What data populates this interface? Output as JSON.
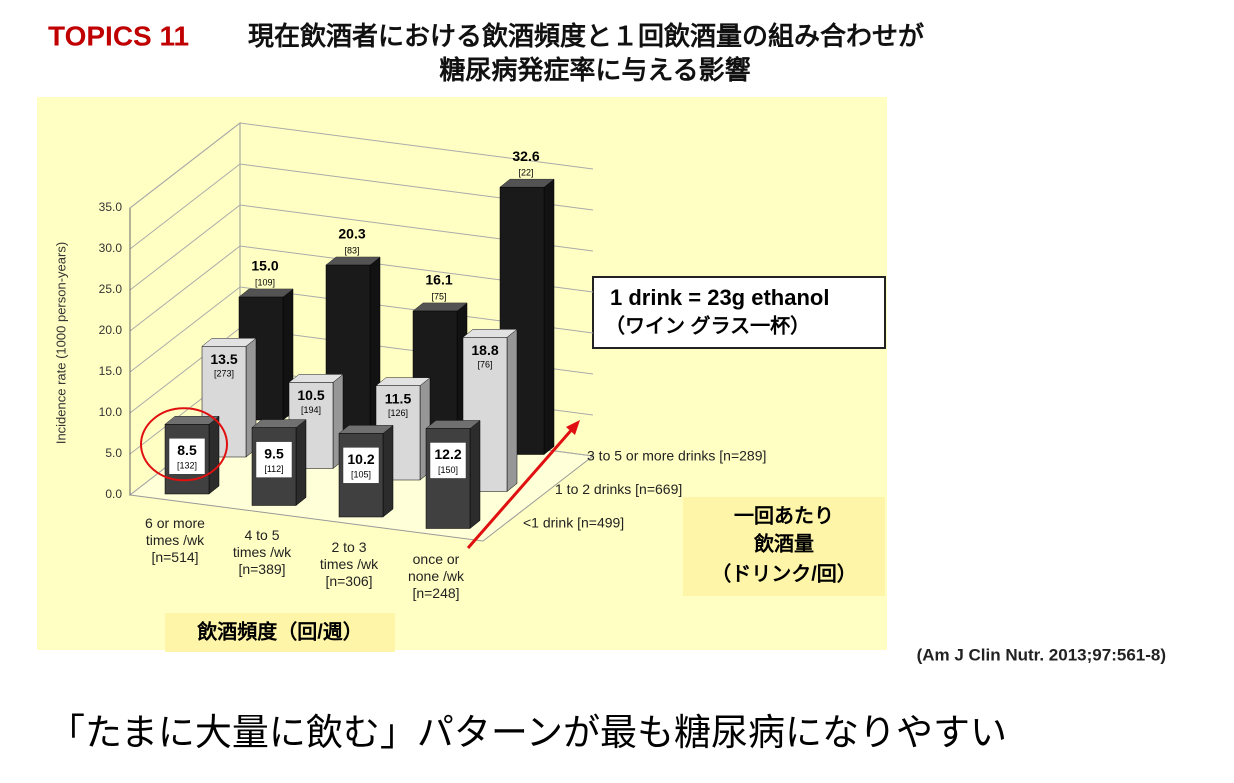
{
  "chart_data": {
    "type": "bar3d",
    "label": "TOPICS 11",
    "title": [
      "現在飲酒者における飲酒頻度と１回飲酒量の組み合わせが",
      "糖尿病発症率に与える影響"
    ],
    "y_label": "Incidence rate (1000 person-years)",
    "categories": [
      "6 or more\ntimes /wk\n[n=514]",
      "4 to 5\ntimes /wk\n[n=389]",
      "2 to 3\ntimes /wk\n[n=306]",
      "once or\nnone /wk\n[n=248]"
    ],
    "series": [
      {
        "name": "<1 drink  [n=499]",
        "color": "#404040",
        "values": [
          8.5,
          9.5,
          10.2,
          12.2
        ],
        "value_labels": [
          "8.5",
          "9.5",
          "10.2",
          "12.2"
        ],
        "count_labels": [
          "[132]",
          "[112]",
          "[105]",
          "[150]"
        ]
      },
      {
        "name": "1 to 2 drinks  [n=669]",
        "color": "#d9d9d9",
        "values": [
          13.5,
          10.5,
          11.5,
          18.8
        ],
        "value_labels": [
          "13.5",
          "10.5",
          "11.5",
          "18.8"
        ],
        "count_labels": [
          "[273]",
          "[194]",
          "[126]",
          "[76]"
        ]
      },
      {
        "name": "3 to 5 or more drinks  [n=289]",
        "color": "#1a1a1a",
        "values": [
          15.0,
          20.3,
          16.1,
          32.6
        ],
        "value_labels": [
          "15.0",
          "20.3",
          "16.1",
          "32.6"
        ],
        "count_labels": [
          "[109]",
          "[83]",
          "[75]",
          "[22]"
        ]
      }
    ],
    "ylim": [
      0,
      35
    ],
    "yticks": [
      {
        "value": 0,
        "label": "0.0"
      },
      {
        "value": 5,
        "label": "5.0"
      },
      {
        "value": 10,
        "label": "10.0"
      },
      {
        "value": 15,
        "label": "15.0"
      },
      {
        "value": 20,
        "label": "20.0"
      },
      {
        "value": 25,
        "label": "25.0"
      },
      {
        "value": 30,
        "label": "30.0"
      },
      {
        "value": 35,
        "label": "35.0"
      }
    ],
    "grid": true,
    "annotations": {
      "drink_def": "1 drink = 23g ethanol",
      "drink_note": "（ワイン グラス一杯）",
      "depth_axis": [
        "一回あたり",
        "飲酒量",
        "（ドリンク/回）"
      ],
      "x_axis": "飲酒頻度（回/週）",
      "citation": "(Am J Clin Nutr. 2013;97:561-8)",
      "conclusion": "「たまに大量に飲む」パターンが最も糖尿病になりやすい"
    }
  }
}
